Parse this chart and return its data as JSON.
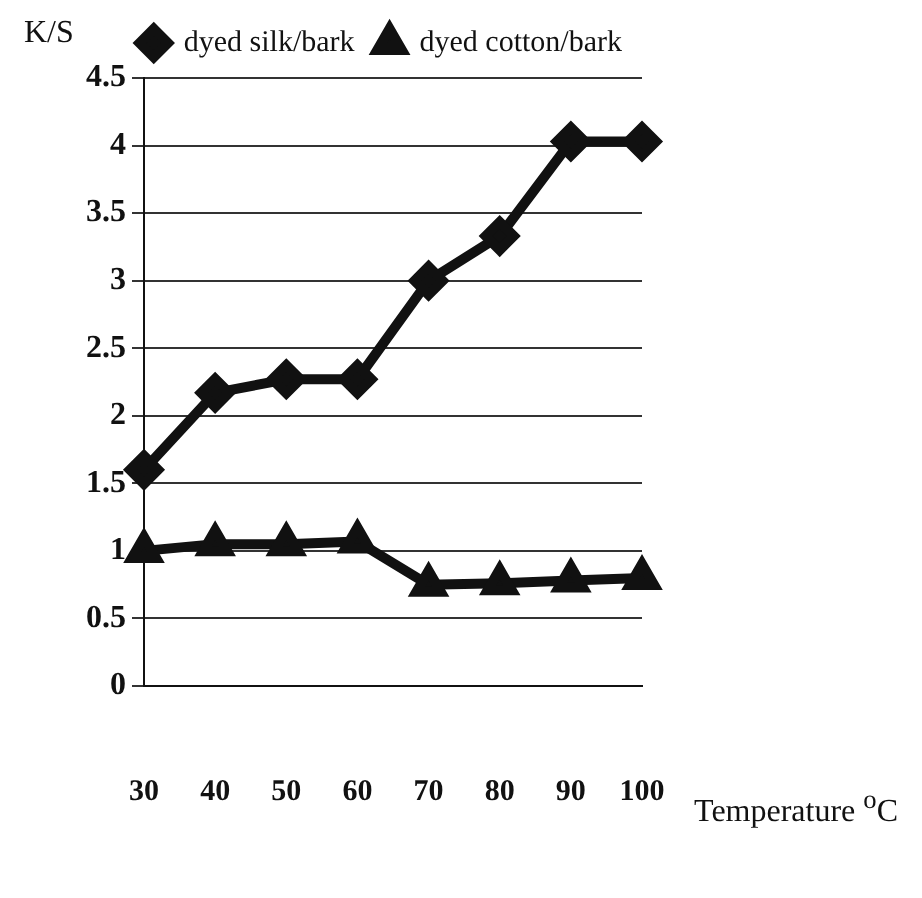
{
  "chart_data": {
    "type": "line",
    "xlabel": "Temperature $^{o}$C",
    "ylabel": "K/S",
    "categories": [
      "30",
      "40",
      "50",
      "60",
      "70",
      "80",
      "90",
      "100"
    ],
    "series": [
      {
        "name": "dyed silk/bark",
        "color": "#111111",
        "marker": "diamond",
        "values": [
          1.6,
          2.17,
          2.27,
          2.27,
          3.0,
          3.33,
          4.03,
          4.03
        ]
      },
      {
        "name": "dyed cotton/bark",
        "color": "#111111",
        "marker": "triangle",
        "values": [
          1.0,
          1.05,
          1.05,
          1.07,
          0.75,
          0.76,
          0.78,
          0.8
        ]
      }
    ],
    "ylim": [
      0,
      4.5
    ],
    "yticks": [
      0,
      0.5,
      1,
      1.5,
      2,
      2.5,
      3,
      3.5,
      4,
      4.5
    ],
    "grid": "y",
    "legend": "top"
  }
}
